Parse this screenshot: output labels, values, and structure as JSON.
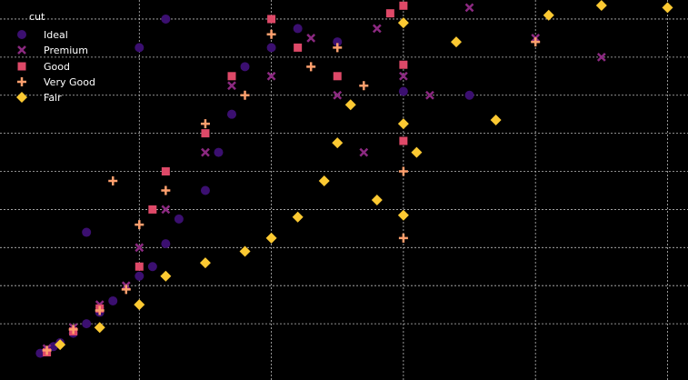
{
  "chart_data": {
    "type": "scatter",
    "title": "",
    "xlabel": "",
    "ylabel": "",
    "xlim": [
      0,
      5.1
    ],
    "ylim": [
      0,
      19000
    ],
    "grid": true,
    "legend": {
      "title": "cut",
      "placement": "top-left",
      "entries": [
        {
          "label": "Ideal",
          "marker": "circle",
          "color": "#3b0f70"
        },
        {
          "label": "Premium",
          "marker": "x",
          "color": "#8c2981"
        },
        {
          "label": "Good",
          "marker": "square",
          "color": "#de4968"
        },
        {
          "label": "Very Good",
          "marker": "plus",
          "color": "#fe9f6d"
        },
        {
          "label": "Fair",
          "marker": "diamond",
          "color": "#fcc932"
        }
      ]
    },
    "series": [
      {
        "name": "Ideal",
        "marker": "circle",
        "color": "#3b0f70",
        "points": [
          [
            0.25,
            450
          ],
          [
            0.3,
            600
          ],
          [
            0.35,
            800
          ],
          [
            0.4,
            1000
          ],
          [
            0.5,
            1500
          ],
          [
            0.6,
            2000
          ],
          [
            0.7,
            2600
          ],
          [
            0.8,
            3200
          ],
          [
            1.0,
            4500
          ],
          [
            1.1,
            5000
          ],
          [
            1.2,
            6200
          ],
          [
            1.3,
            7500
          ],
          [
            1.5,
            9000
          ],
          [
            1.6,
            11000
          ],
          [
            1.7,
            13000
          ],
          [
            1.8,
            15500
          ],
          [
            2.0,
            16500
          ],
          [
            2.2,
            17500
          ],
          [
            2.5,
            16800
          ],
          [
            3.0,
            14200
          ],
          [
            3.5,
            14000
          ],
          [
            1.0,
            16500
          ],
          [
            1.2,
            18000
          ],
          [
            0.6,
            6800
          ]
        ]
      },
      {
        "name": "Premium",
        "marker": "x",
        "color": "#8c2981",
        "points": [
          [
            0.3,
            700
          ],
          [
            0.5,
            1800
          ],
          [
            0.7,
            3000
          ],
          [
            0.9,
            4000
          ],
          [
            1.0,
            6000
          ],
          [
            1.2,
            8000
          ],
          [
            1.5,
            11000
          ],
          [
            1.7,
            14500
          ],
          [
            2.0,
            15000
          ],
          [
            2.3,
            17000
          ],
          [
            2.5,
            14000
          ],
          [
            2.7,
            11000
          ],
          [
            3.0,
            15000
          ],
          [
            3.2,
            14000
          ],
          [
            3.5,
            18600
          ],
          [
            4.0,
            17000
          ],
          [
            4.5,
            16000
          ],
          [
            2.8,
            17500
          ]
        ]
      },
      {
        "name": "Good",
        "marker": "square",
        "color": "#de4968",
        "points": [
          [
            0.3,
            500
          ],
          [
            0.5,
            1600
          ],
          [
            0.7,
            2800
          ],
          [
            1.0,
            5000
          ],
          [
            1.1,
            8000
          ],
          [
            1.2,
            10000
          ],
          [
            1.5,
            12000
          ],
          [
            1.7,
            15000
          ],
          [
            2.0,
            18000
          ],
          [
            2.2,
            16500
          ],
          [
            2.5,
            15000
          ],
          [
            2.9,
            18300
          ],
          [
            3.0,
            18700
          ],
          [
            3.0,
            15600
          ],
          [
            3.0,
            11600
          ]
        ]
      },
      {
        "name": "Very Good",
        "marker": "plus",
        "color": "#fe9f6d",
        "points": [
          [
            0.3,
            600
          ],
          [
            0.5,
            1700
          ],
          [
            0.7,
            2700
          ],
          [
            0.9,
            3800
          ],
          [
            1.0,
            7200
          ],
          [
            1.2,
            9000
          ],
          [
            1.5,
            12500
          ],
          [
            1.8,
            14000
          ],
          [
            2.0,
            17200
          ],
          [
            2.3,
            15500
          ],
          [
            2.5,
            16500
          ],
          [
            2.7,
            14500
          ],
          [
            3.0,
            10000
          ],
          [
            3.0,
            6500
          ],
          [
            4.0,
            16800
          ],
          [
            0.8,
            9500
          ]
        ]
      },
      {
        "name": "Fair",
        "marker": "diamond",
        "color": "#fcc932",
        "points": [
          [
            0.4,
            900
          ],
          [
            0.7,
            1800
          ],
          [
            1.0,
            3000
          ],
          [
            1.2,
            4500
          ],
          [
            1.5,
            5200
          ],
          [
            1.8,
            5800
          ],
          [
            2.0,
            6500
          ],
          [
            2.2,
            7600
          ],
          [
            2.4,
            9500
          ],
          [
            2.5,
            11500
          ],
          [
            2.6,
            13500
          ],
          [
            2.8,
            8500
          ],
          [
            3.0,
            7700
          ],
          [
            3.0,
            12500
          ],
          [
            3.0,
            17800
          ],
          [
            3.1,
            11000
          ],
          [
            3.4,
            16800
          ],
          [
            3.7,
            12700
          ],
          [
            4.1,
            18200
          ],
          [
            4.5,
            19000
          ],
          [
            5.0,
            18600
          ]
        ]
      }
    ]
  }
}
